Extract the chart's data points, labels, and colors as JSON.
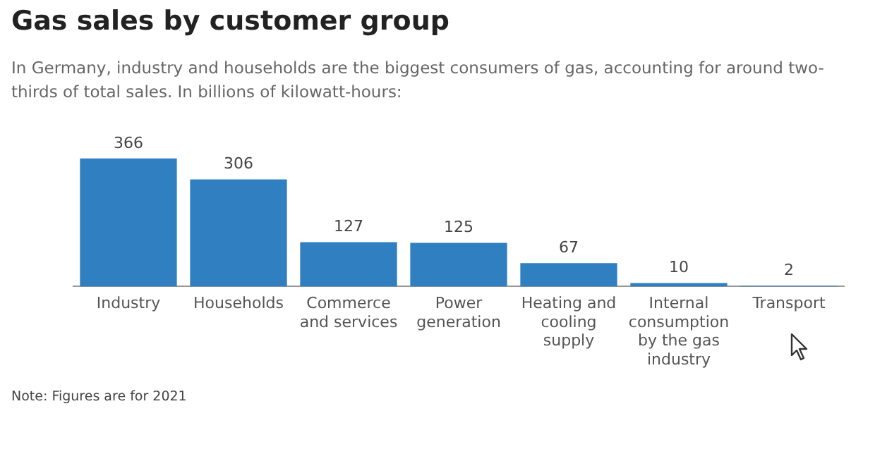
{
  "chart_data": {
    "type": "bar",
    "title": "Gas sales by customer group",
    "subtitle": "In Germany, industry and households are the biggest consumers of gas, accounting for around two-thirds of total sales. In billions of kilowatt-hours:",
    "categories": [
      "Industry",
      "Households",
      "Commerce and services",
      "Power generation",
      "Heating and cooling supply",
      "Internal consumption by the gas industry",
      "Transport"
    ],
    "values": [
      366,
      306,
      127,
      125,
      67,
      10,
      2
    ],
    "color": "#2f7fc1",
    "data_labels": true,
    "annotations": [
      "Note: Figures are for 2021"
    ]
  }
}
